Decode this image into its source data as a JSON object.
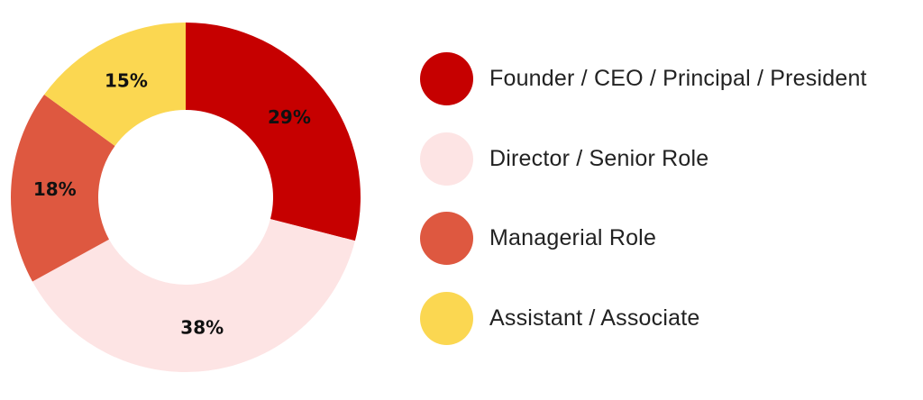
{
  "chart_data": {
    "type": "pie",
    "style": "donut",
    "categories": [
      "Founder / CEO / Principal / President",
      "Director / Senior Role",
      "Managerial Role",
      "Assistant / Associate"
    ],
    "values": [
      29,
      38,
      18,
      15
    ],
    "value_labels": [
      "29%",
      "38%",
      "18%",
      "15%"
    ],
    "colors": [
      "#c60000",
      "#fde4e4",
      "#de5840",
      "#fbd751"
    ],
    "legend_position": "right"
  }
}
